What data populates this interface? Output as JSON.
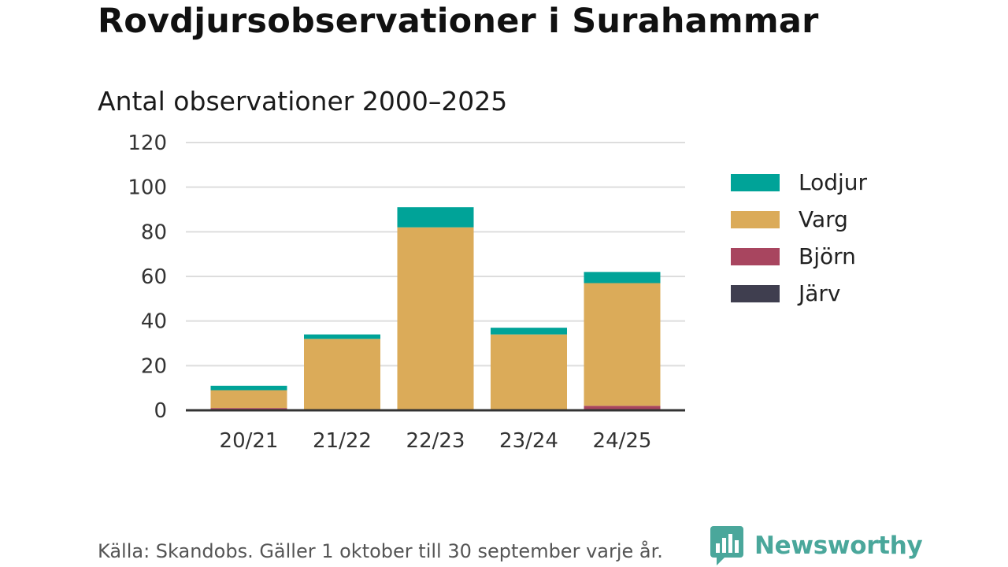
{
  "header": {
    "title": "Rovdjursobservationer i Surahammar",
    "subtitle": "Antal observationer 2000–2025"
  },
  "chart_data": {
    "type": "bar",
    "stacked": true,
    "categories": [
      "20/21",
      "21/22",
      "22/23",
      "23/24",
      "24/25"
    ],
    "series": [
      {
        "name": "Järv",
        "color": "#3f3e4f",
        "values": [
          0,
          0,
          0,
          0,
          0
        ]
      },
      {
        "name": "Björn",
        "color": "#a8455f",
        "values": [
          1,
          0,
          0,
          0,
          2
        ]
      },
      {
        "name": "Varg",
        "color": "#dbab59",
        "values": [
          8,
          32,
          82,
          34,
          55
        ]
      },
      {
        "name": "Lodjur",
        "color": "#00a398",
        "values": [
          2,
          2,
          9,
          3,
          5
        ]
      }
    ],
    "yticks": [
      0,
      20,
      40,
      60,
      80,
      100,
      120
    ],
    "ylim": [
      0,
      120
    ],
    "xlabel": "",
    "ylabel": "",
    "legend_position": "right",
    "grid": true
  },
  "legend": {
    "items": [
      {
        "label": "Lodjur",
        "color": "#00a398"
      },
      {
        "label": "Varg",
        "color": "#dbab59"
      },
      {
        "label": "Björn",
        "color": "#a8455f"
      },
      {
        "label": "Järv",
        "color": "#3f3e4f"
      }
    ]
  },
  "footer": {
    "source": "Källa: Skandobs. Gäller 1 oktober till 30 september varje år.",
    "brand": "Newsworthy",
    "brand_color": "#4aa79b"
  }
}
